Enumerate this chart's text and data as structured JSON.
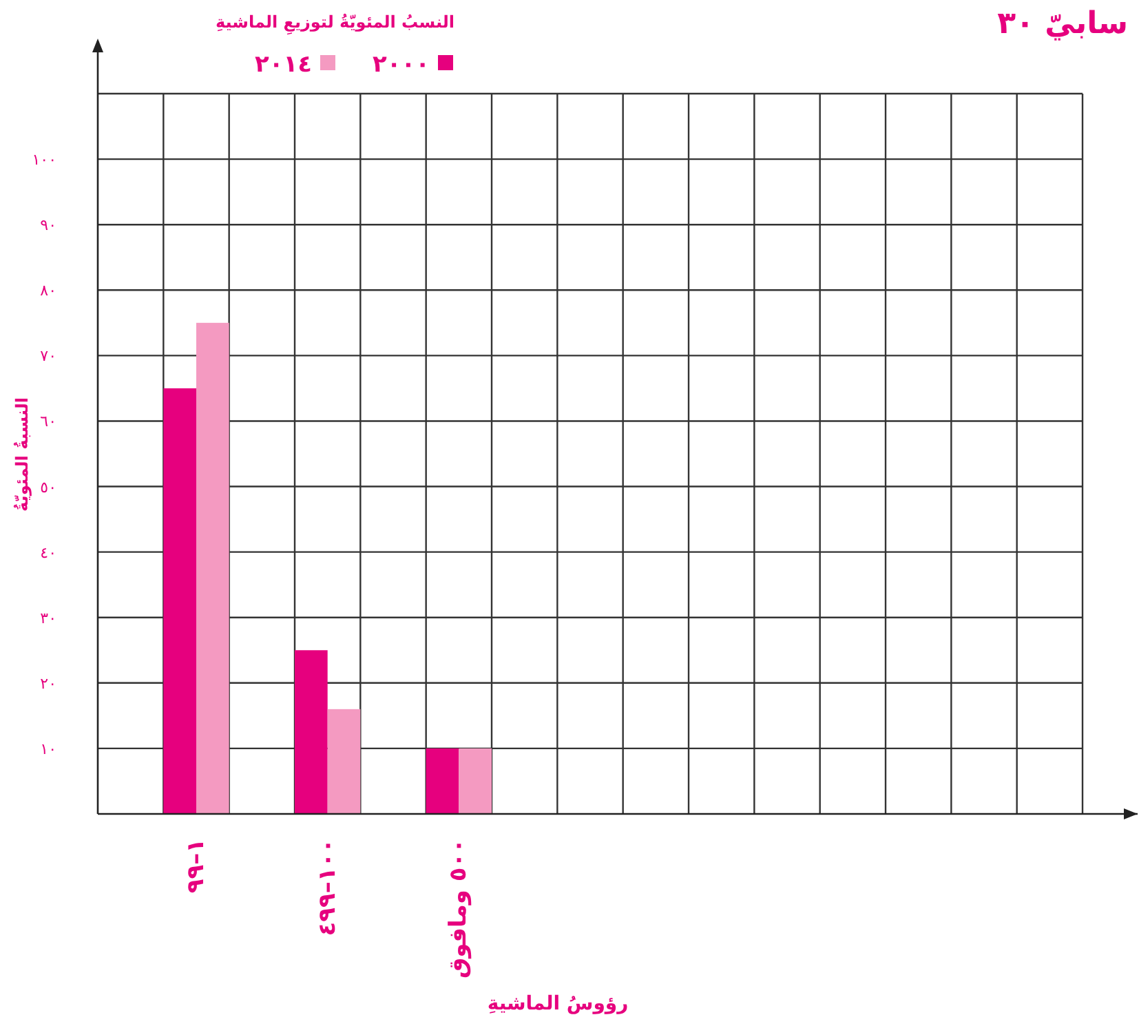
{
  "chart_data": {
    "type": "bar",
    "legend_title": "النسبُ المئويّةُ لتوزيعِ الماشيةِ",
    "xlabel": "رؤوسُ الماشيةِ",
    "ylabel": "النسبةُ المئويّةُ",
    "annotations": [
      "سابيّ ٣٠"
    ],
    "categories": [
      "١–٩٩",
      "١٠٠–٤٩٩",
      "٥٠٠ ومافوق",
      null,
      null,
      null,
      null
    ],
    "series": [
      {
        "name": "٢٠٠٠",
        "color": "#e6007e",
        "values": [
          65,
          25,
          10,
          null,
          null,
          null,
          null
        ]
      },
      {
        "name": "٢٠١٤",
        "color": "#f49ac1",
        "values": [
          75,
          16,
          10,
          null,
          null,
          null,
          null
        ]
      }
    ],
    "ylim": [
      0,
      110
    ],
    "yticks": [
      {
        "value": 10,
        "label": "١٠"
      },
      {
        "value": 20,
        "label": "٢٠"
      },
      {
        "value": 30,
        "label": "٣٠"
      },
      {
        "value": 40,
        "label": "٤٠"
      },
      {
        "value": 50,
        "label": "٥٠"
      },
      {
        "value": 60,
        "label": "٦٠"
      },
      {
        "value": 70,
        "label": "٧٠"
      },
      {
        "value": 80,
        "label": "٨٠"
      },
      {
        "value": 90,
        "label": "٩٠"
      },
      {
        "value": 100,
        "label": "١٠٠"
      }
    ],
    "grid": true,
    "legend": "top"
  }
}
